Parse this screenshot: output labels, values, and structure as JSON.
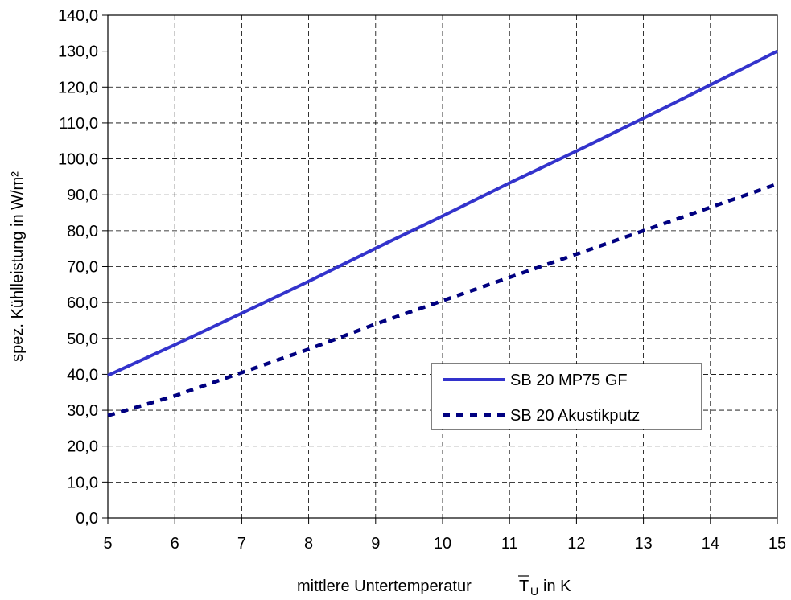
{
  "chart_data": {
    "type": "line",
    "xlabel": "mittlere Untertemperatur",
    "xlabel_symbol": "T",
    "xlabel_subscript": "U",
    "xlabel_unit": "in K",
    "ylabel": "spez. Kühlleistung in W/m²",
    "xlim": [
      5,
      15
    ],
    "ylim": [
      0,
      140
    ],
    "x_ticks": [
      "5",
      "6",
      "7",
      "8",
      "9",
      "10",
      "11",
      "12",
      "13",
      "14",
      "15"
    ],
    "y_ticks": [
      "0,0",
      "10,0",
      "20,0",
      "30,0",
      "40,0",
      "50,0",
      "60,0",
      "70,0",
      "80,0",
      "90,0",
      "100,0",
      "110,0",
      "120,0",
      "130,0",
      "140,0"
    ],
    "grid": true,
    "legend_position": "center-right",
    "series": [
      {
        "name": "SB 20  MP75 GF",
        "style": "solid",
        "color": "#3333cc",
        "x": [
          5,
          6,
          7,
          8,
          9,
          10,
          11,
          12,
          13,
          14,
          15
        ],
        "y": [
          39.7,
          48.2,
          57.0,
          65.9,
          75.1,
          84.1,
          93.3,
          102.2,
          111.3,
          120.6,
          130.0
        ]
      },
      {
        "name": "SB 20  Akustikputz",
        "style": "dashed",
        "color": "#000080",
        "x": [
          5,
          6,
          7,
          8,
          9,
          10,
          11,
          12,
          13,
          14,
          15
        ],
        "y": [
          28.5,
          34.0,
          40.5,
          47.0,
          54.0,
          60.5,
          67.0,
          73.5,
          80.0,
          86.5,
          93.0
        ]
      }
    ]
  }
}
